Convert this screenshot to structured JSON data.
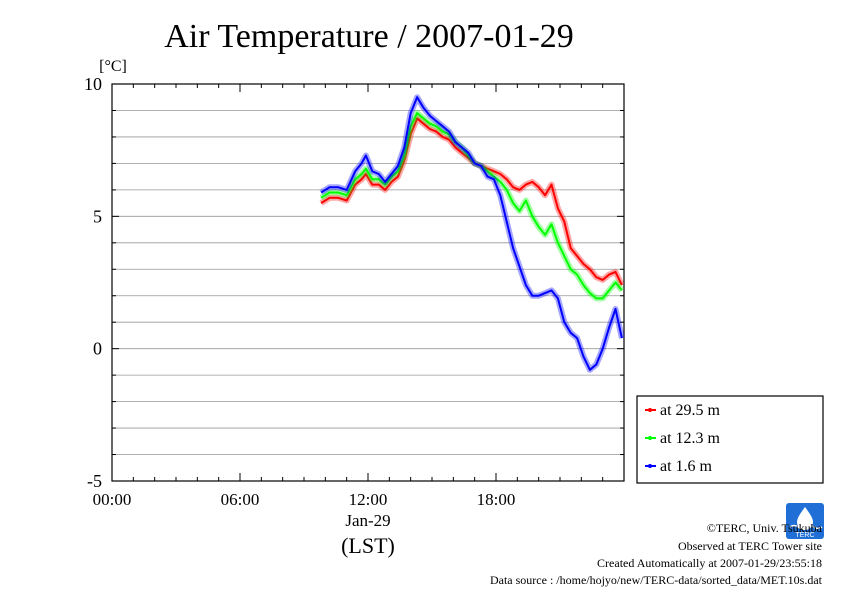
{
  "chart_data": {
    "type": "line",
    "title": "Air Temperature / 2007-01-29",
    "ylabel": "[°C]",
    "ylim": [
      -5,
      10
    ],
    "yticks": [
      -5,
      0,
      5,
      10
    ],
    "xlim": [
      0,
      24
    ],
    "x_unit": "hours LST on 2007-01-29",
    "xticks": [
      {
        "value": 0,
        "label": "00:00"
      },
      {
        "value": 6,
        "label": "06:00"
      },
      {
        "value": 12,
        "label": "12:00"
      },
      {
        "value": 18,
        "label": "18:00"
      }
    ],
    "xsublabel_date": "Jan-29",
    "xlabel": "(LST)",
    "grid": "horizontal",
    "legend_position": "right-bottom",
    "series": [
      {
        "name": "at 29.5 m",
        "color": "#ff0000",
        "x": [
          9.8,
          10.2,
          10.6,
          11.0,
          11.4,
          11.7,
          11.9,
          12.2,
          12.5,
          12.8,
          13.1,
          13.4,
          13.7,
          14.0,
          14.3,
          14.6,
          14.9,
          15.2,
          15.5,
          15.8,
          16.1,
          16.4,
          16.7,
          17.0,
          17.3,
          17.6,
          17.9,
          18.2,
          18.5,
          18.8,
          19.1,
          19.4,
          19.7,
          20.0,
          20.3,
          20.6,
          20.9,
          21.2,
          21.5,
          21.8,
          22.1,
          22.4,
          22.7,
          23.0,
          23.3,
          23.6,
          23.9
        ],
        "y": [
          5.5,
          5.7,
          5.7,
          5.6,
          6.2,
          6.4,
          6.6,
          6.2,
          6.2,
          6.0,
          6.3,
          6.5,
          7.1,
          8.1,
          8.7,
          8.5,
          8.3,
          8.2,
          8.0,
          7.9,
          7.6,
          7.4,
          7.2,
          7.0,
          6.9,
          6.8,
          6.7,
          6.6,
          6.4,
          6.1,
          6.0,
          6.2,
          6.3,
          6.1,
          5.8,
          6.2,
          5.3,
          4.8,
          3.8,
          3.5,
          3.2,
          3.0,
          2.7,
          2.6,
          2.8,
          2.9,
          2.4
        ]
      },
      {
        "name": "at 12.3 m",
        "color": "#00ff00",
        "x": [
          9.8,
          10.2,
          10.6,
          11.0,
          11.4,
          11.7,
          11.9,
          12.2,
          12.5,
          12.8,
          13.1,
          13.4,
          13.7,
          14.0,
          14.3,
          14.6,
          14.9,
          15.2,
          15.5,
          15.8,
          16.1,
          16.4,
          16.7,
          17.0,
          17.3,
          17.6,
          17.9,
          18.2,
          18.5,
          18.8,
          19.1,
          19.4,
          19.7,
          20.0,
          20.3,
          20.6,
          20.9,
          21.2,
          21.5,
          21.8,
          22.1,
          22.4,
          22.7,
          23.0,
          23.3,
          23.6,
          23.9
        ],
        "y": [
          5.7,
          5.9,
          5.9,
          5.8,
          6.4,
          6.6,
          6.8,
          6.4,
          6.4,
          6.2,
          6.5,
          6.7,
          7.3,
          8.4,
          8.9,
          8.7,
          8.5,
          8.4,
          8.2,
          8.1,
          7.8,
          7.6,
          7.3,
          7.0,
          6.9,
          6.7,
          6.5,
          6.3,
          6.0,
          5.5,
          5.2,
          5.6,
          5.0,
          4.6,
          4.3,
          4.7,
          4.0,
          3.5,
          3.0,
          2.8,
          2.4,
          2.1,
          1.9,
          1.9,
          2.2,
          2.5,
          2.2
        ]
      },
      {
        "name": "at 1.6 m",
        "color": "#0000ff",
        "x": [
          9.8,
          10.2,
          10.6,
          11.0,
          11.4,
          11.7,
          11.9,
          12.2,
          12.5,
          12.8,
          13.1,
          13.4,
          13.7,
          14.0,
          14.3,
          14.6,
          14.9,
          15.2,
          15.5,
          15.8,
          16.1,
          16.4,
          16.7,
          17.0,
          17.3,
          17.6,
          17.9,
          18.2,
          18.5,
          18.8,
          19.1,
          19.4,
          19.7,
          20.0,
          20.3,
          20.6,
          20.9,
          21.2,
          21.5,
          21.8,
          22.1,
          22.4,
          22.7,
          23.0,
          23.3,
          23.6,
          23.9
        ],
        "y": [
          5.9,
          6.1,
          6.1,
          6.0,
          6.7,
          7.0,
          7.3,
          6.7,
          6.6,
          6.3,
          6.6,
          6.9,
          7.6,
          8.9,
          9.5,
          9.1,
          8.8,
          8.6,
          8.4,
          8.2,
          7.8,
          7.6,
          7.4,
          7.0,
          6.9,
          6.5,
          6.4,
          5.8,
          4.8,
          3.8,
          3.1,
          2.4,
          2.0,
          2.0,
          2.1,
          2.2,
          1.9,
          1.0,
          0.6,
          0.4,
          -0.3,
          -0.8,
          -0.6,
          0.0,
          0.8,
          1.5,
          0.4
        ]
      }
    ]
  },
  "footer": {
    "copyright": "©TERC, Univ. Tsukuba",
    "observed": "Observed at TERC Tower site",
    "created": "Created Automatically at 2007-01-29/23:55:18",
    "source": "Data source : /home/hojyo/new/TERC-data/sorted_data/MET.10s.dat"
  },
  "logo": {
    "text": "TERC",
    "color": "#1f6fd6"
  }
}
